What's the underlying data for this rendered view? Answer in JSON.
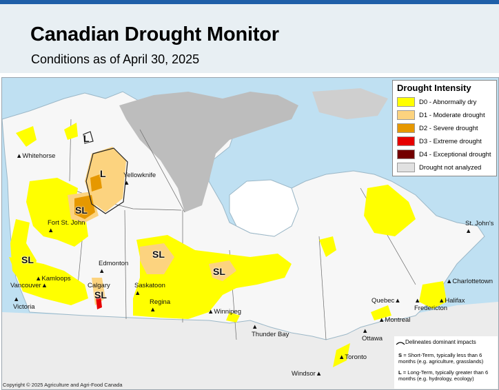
{
  "header": {
    "title": "Canadian Drought Monitor",
    "subtitle": "Conditions as of April 30, 2025"
  },
  "legend": {
    "title": "Drought Intensity",
    "items": [
      {
        "label": "D0 - Abnormally dry",
        "color": "#ffff00"
      },
      {
        "label": "D1 - Moderate drought",
        "color": "#fcd37f"
      },
      {
        "label": "D2 - Severe drought",
        "color": "#e69800"
      },
      {
        "label": "D3 - Extreme drought",
        "color": "#e60000"
      },
      {
        "label": "D4 - Exceptional drought",
        "color": "#730000"
      },
      {
        "label": "Drought not analyzed",
        "color": "#e1e1e1"
      }
    ]
  },
  "impact_notes": {
    "delineates": "Delineates dominant impacts",
    "short_term_code": "S",
    "short_term": "= Short-Term, typically less than 6 months (e.g. agriculture, grasslands)",
    "long_term_code": "L",
    "long_term": "= Long-Term, typically greater than 6 months (e.g. hydrology, ecology)"
  },
  "cities": [
    {
      "name": "Whitehorse",
      "marker": "▲"
    },
    {
      "name": "Yellowknife",
      "marker": "▲"
    },
    {
      "name": "Fort St. John",
      "marker": "▲"
    },
    {
      "name": "Edmonton",
      "marker": "▲"
    },
    {
      "name": "Kamloops",
      "marker": "▲"
    },
    {
      "name": "Vancouver",
      "marker": "▲"
    },
    {
      "name": "Victoria",
      "marker": "▲"
    },
    {
      "name": "Calgary",
      "marker": "▲"
    },
    {
      "name": "Saskatoon",
      "marker": "▲"
    },
    {
      "name": "Regina",
      "marker": "▲"
    },
    {
      "name": "Winnipeg",
      "marker": "▲"
    },
    {
      "name": "Thunder Bay",
      "marker": "▲"
    },
    {
      "name": "Toronto",
      "marker": "▲"
    },
    {
      "name": "Windsor",
      "marker": "▲"
    },
    {
      "name": "Ottawa",
      "marker": "▲"
    },
    {
      "name": "Montreal",
      "marker": "▲"
    },
    {
      "name": "Quebec",
      "marker": "▲"
    },
    {
      "name": "Fredericton",
      "marker": "▲"
    },
    {
      "name": "Halifax",
      "marker": "▲"
    },
    {
      "name": "Charlottetown",
      "marker": "▲"
    },
    {
      "name": "St. John's",
      "marker": "▲"
    }
  ],
  "impact_labels": [
    "L",
    "L",
    "SL",
    "SL",
    "SL",
    "SL",
    "SL"
  ],
  "copyright": "Copyright © 2025 Agriculture and Agri-Food Canada",
  "colors": {
    "water": "#bfe0f2",
    "land": "#f7f7f7",
    "not_analyzed": "#bdbdbd",
    "header_band": "#e8eff3",
    "top_bar": "#1f5fa8"
  }
}
